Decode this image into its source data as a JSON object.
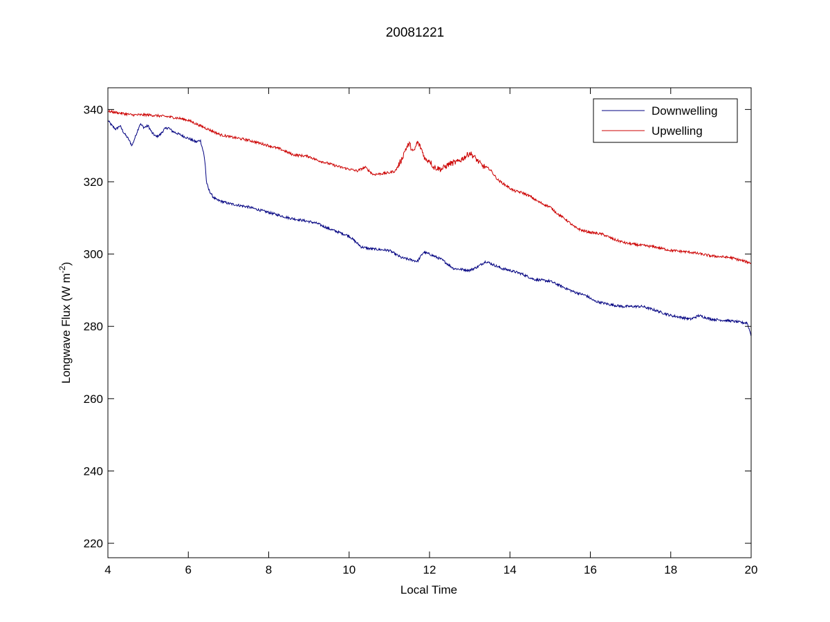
{
  "chart_data": {
    "type": "line",
    "title": "20081221",
    "xlabel": "Local Time",
    "ylabel": {
      "base": "Longwave Flux (W m",
      "superscript": "-2",
      "close": ")"
    },
    "xlim": [
      4,
      20
    ],
    "ylim": [
      216,
      346
    ],
    "xticks": [
      4,
      6,
      8,
      10,
      12,
      14,
      16,
      18,
      20
    ],
    "yticks": [
      220,
      240,
      260,
      280,
      300,
      320,
      340
    ],
    "grid": false,
    "legend_position": "top-right",
    "series": [
      {
        "name": "Downwelling",
        "color": "#000080",
        "points": [
          [
            4.0,
            337
          ],
          [
            4.1,
            335.5
          ],
          [
            4.2,
            334.5
          ],
          [
            4.3,
            335.5
          ],
          [
            4.4,
            333.5
          ],
          [
            4.5,
            332
          ],
          [
            4.6,
            330
          ],
          [
            4.7,
            333
          ],
          [
            4.8,
            336
          ],
          [
            4.9,
            335
          ],
          [
            5.0,
            335.5
          ],
          [
            5.1,
            333.5
          ],
          [
            5.2,
            332.5
          ],
          [
            5.3,
            333
          ],
          [
            5.4,
            334.5
          ],
          [
            5.5,
            335
          ],
          [
            5.6,
            334
          ],
          [
            5.7,
            333.5
          ],
          [
            5.8,
            333
          ],
          [
            5.9,
            332.5
          ],
          [
            6.0,
            332
          ],
          [
            6.1,
            331.5
          ],
          [
            6.2,
            331
          ],
          [
            6.3,
            331.5
          ],
          [
            6.38,
            328
          ],
          [
            6.42,
            325
          ],
          [
            6.45,
            320
          ],
          [
            6.5,
            318
          ],
          [
            6.55,
            317
          ],
          [
            6.6,
            316
          ],
          [
            6.7,
            315
          ],
          [
            7.0,
            314
          ],
          [
            7.5,
            313
          ],
          [
            8.0,
            311.5
          ],
          [
            8.5,
            310
          ],
          [
            9.0,
            309
          ],
          [
            9.2,
            308.5
          ],
          [
            9.5,
            307
          ],
          [
            10.0,
            305
          ],
          [
            10.3,
            302
          ],
          [
            10.5,
            301.5
          ],
          [
            11.0,
            301
          ],
          [
            11.3,
            299
          ],
          [
            11.7,
            298
          ],
          [
            11.85,
            300.5
          ],
          [
            12.0,
            300
          ],
          [
            12.3,
            298.5
          ],
          [
            12.6,
            296
          ],
          [
            13.0,
            295.5
          ],
          [
            13.2,
            296.5
          ],
          [
            13.4,
            298
          ],
          [
            13.6,
            297
          ],
          [
            13.8,
            296
          ],
          [
            14.0,
            295.5
          ],
          [
            14.3,
            294.5
          ],
          [
            14.6,
            293
          ],
          [
            15.0,
            292.5
          ],
          [
            15.3,
            291
          ],
          [
            15.6,
            289.5
          ],
          [
            15.9,
            288.5
          ],
          [
            16.1,
            287
          ],
          [
            16.5,
            286
          ],
          [
            16.8,
            285.5
          ],
          [
            17.3,
            285.5
          ],
          [
            17.6,
            284.5
          ],
          [
            18.0,
            283
          ],
          [
            18.5,
            282
          ],
          [
            18.7,
            283
          ],
          [
            19.0,
            282
          ],
          [
            19.5,
            281.5
          ],
          [
            19.8,
            281
          ],
          [
            19.9,
            281
          ],
          [
            20.0,
            277.5
          ]
        ]
      },
      {
        "name": "Upwelling",
        "color": "#cc0000",
        "points": [
          [
            4.0,
            339.5
          ],
          [
            4.3,
            339
          ],
          [
            4.6,
            338.5
          ],
          [
            5.0,
            338.5
          ],
          [
            5.5,
            338
          ],
          [
            5.8,
            337.5
          ],
          [
            6.0,
            337
          ],
          [
            6.3,
            335.5
          ],
          [
            6.5,
            334.5
          ],
          [
            6.8,
            333
          ],
          [
            7.0,
            332.5
          ],
          [
            7.5,
            331.5
          ],
          [
            8.0,
            330
          ],
          [
            8.3,
            329
          ],
          [
            8.6,
            327.5
          ],
          [
            9.0,
            327
          ],
          [
            9.2,
            326
          ],
          [
            9.5,
            325
          ],
          [
            9.8,
            324
          ],
          [
            10.0,
            323.5
          ],
          [
            10.2,
            323
          ],
          [
            10.4,
            324
          ],
          [
            10.6,
            322
          ],
          [
            11.0,
            322.5
          ],
          [
            11.15,
            323
          ],
          [
            11.3,
            326
          ],
          [
            11.4,
            329
          ],
          [
            11.5,
            330.5
          ],
          [
            11.6,
            328
          ],
          [
            11.7,
            331
          ],
          [
            11.8,
            329
          ],
          [
            11.9,
            326
          ],
          [
            12.0,
            326
          ],
          [
            12.1,
            324
          ],
          [
            12.3,
            323.5
          ],
          [
            12.5,
            325
          ],
          [
            12.7,
            325.5
          ],
          [
            12.9,
            327
          ],
          [
            13.0,
            328
          ],
          [
            13.1,
            327
          ],
          [
            13.3,
            324.5
          ],
          [
            13.5,
            323.5
          ],
          [
            13.6,
            322
          ],
          [
            13.7,
            320.5
          ],
          [
            13.9,
            319
          ],
          [
            14.1,
            317.5
          ],
          [
            14.3,
            317
          ],
          [
            14.5,
            316
          ],
          [
            14.7,
            314.5
          ],
          [
            15.0,
            313
          ],
          [
            15.2,
            311
          ],
          [
            15.4,
            309.5
          ],
          [
            15.6,
            307.5
          ],
          [
            15.8,
            306.5
          ],
          [
            16.0,
            306
          ],
          [
            16.3,
            305.5
          ],
          [
            16.6,
            304
          ],
          [
            16.9,
            303
          ],
          [
            17.2,
            302.5
          ],
          [
            17.6,
            302
          ],
          [
            18.0,
            301
          ],
          [
            18.5,
            300.5
          ],
          [
            19.0,
            299.5
          ],
          [
            19.5,
            299
          ],
          [
            20.0,
            297.5
          ]
        ]
      }
    ]
  }
}
